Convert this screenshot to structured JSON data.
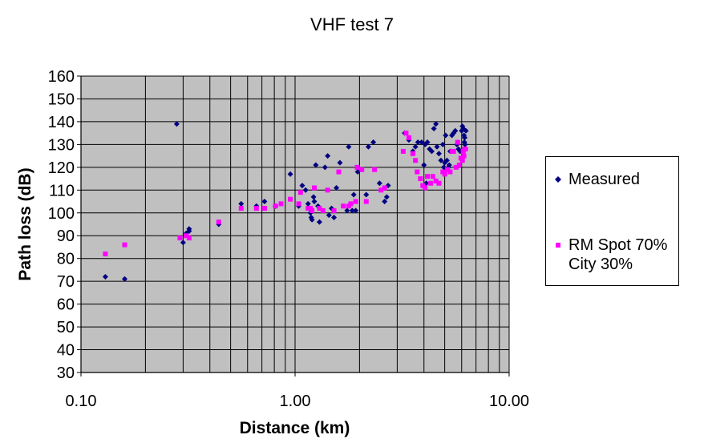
{
  "chart_data": {
    "type": "scatter",
    "title": "VHF test 7",
    "xlabel": "Distance (km)",
    "ylabel": "Path loss (dB)",
    "x_scale": "log",
    "xlim": [
      0.1,
      10
    ],
    "ylim": [
      30,
      160
    ],
    "x_ticks": [
      "0.10",
      "1.00",
      "10.00"
    ],
    "y_ticks": [
      "30",
      "40",
      "50",
      "60",
      "70",
      "80",
      "90",
      "100",
      "110",
      "120",
      "130",
      "140",
      "150",
      "160"
    ],
    "grid": true,
    "legend_position": "right",
    "colors": {
      "plot_bg": "#c0c0c0",
      "measured": "#000080",
      "rm_spot": "#ff00ff"
    },
    "series": [
      {
        "name": "Measured",
        "marker": "diamond",
        "points": [
          [
            0.13,
            72
          ],
          [
            0.16,
            71
          ],
          [
            0.28,
            139
          ],
          [
            0.3,
            87
          ],
          [
            0.31,
            91
          ],
          [
            0.32,
            93
          ],
          [
            0.32,
            92
          ],
          [
            0.44,
            95
          ],
          [
            0.56,
            104
          ],
          [
            0.66,
            103
          ],
          [
            0.72,
            105
          ],
          [
            0.81,
            103
          ],
          [
            0.95,
            117
          ],
          [
            1.04,
            103
          ],
          [
            1.08,
            112
          ],
          [
            1.12,
            110
          ],
          [
            1.15,
            104
          ],
          [
            1.18,
            100
          ],
          [
            1.19,
            98
          ],
          [
            1.2,
            97
          ],
          [
            1.22,
            107
          ],
          [
            1.23,
            105
          ],
          [
            1.25,
            121
          ],
          [
            1.28,
            103
          ],
          [
            1.3,
            96
          ],
          [
            1.38,
            120
          ],
          [
            1.42,
            125
          ],
          [
            1.44,
            99
          ],
          [
            1.48,
            102
          ],
          [
            1.52,
            98
          ],
          [
            1.56,
            111
          ],
          [
            1.62,
            122
          ],
          [
            1.75,
            101
          ],
          [
            1.78,
            129
          ],
          [
            1.85,
            101
          ],
          [
            1.88,
            108
          ],
          [
            1.92,
            101
          ],
          [
            1.96,
            118
          ],
          [
            2.15,
            108
          ],
          [
            2.2,
            129
          ],
          [
            2.32,
            131
          ],
          [
            2.48,
            113
          ],
          [
            2.62,
            105
          ],
          [
            2.68,
            107
          ],
          [
            2.72,
            112
          ],
          [
            3.25,
            135
          ],
          [
            3.4,
            132
          ],
          [
            3.55,
            127
          ],
          [
            3.65,
            129
          ],
          [
            3.75,
            131
          ],
          [
            3.9,
            131
          ],
          [
            4.0,
            121
          ],
          [
            4.05,
            130
          ],
          [
            4.1,
            113
          ],
          [
            4.15,
            131
          ],
          [
            4.25,
            128
          ],
          [
            4.35,
            127
          ],
          [
            4.45,
            137
          ],
          [
            4.55,
            139
          ],
          [
            4.6,
            129
          ],
          [
            4.7,
            126
          ],
          [
            4.8,
            123
          ],
          [
            4.9,
            130
          ],
          [
            5.0,
            122
          ],
          [
            5.05,
            134
          ],
          [
            5.12,
            123
          ],
          [
            5.2,
            120
          ],
          [
            5.3,
            127
          ],
          [
            5.4,
            134
          ],
          [
            5.5,
            135
          ],
          [
            5.6,
            136
          ],
          [
            5.7,
            130
          ],
          [
            5.8,
            128
          ],
          [
            5.9,
            127
          ],
          [
            6.0,
            136
          ],
          [
            6.05,
            138
          ],
          [
            6.1,
            137
          ],
          [
            6.15,
            134
          ],
          [
            6.18,
            131
          ],
          [
            6.2,
            133
          ],
          [
            6.22,
            130
          ],
          [
            6.25,
            128
          ],
          [
            6.28,
            136
          ],
          [
            5.25,
            121
          ],
          [
            4.95,
            120
          ]
        ]
      },
      {
        "name": "RM Spot 70%\nCity 30%",
        "marker": "square",
        "points": [
          [
            0.13,
            82
          ],
          [
            0.16,
            86
          ],
          [
            0.29,
            89
          ],
          [
            0.31,
            90
          ],
          [
            0.32,
            89
          ],
          [
            0.44,
            96
          ],
          [
            0.56,
            102
          ],
          [
            0.66,
            102
          ],
          [
            0.72,
            102
          ],
          [
            0.81,
            103
          ],
          [
            0.86,
            104
          ],
          [
            0.95,
            106
          ],
          [
            1.04,
            104
          ],
          [
            1.06,
            109
          ],
          [
            1.15,
            102
          ],
          [
            1.18,
            102
          ],
          [
            1.2,
            101
          ],
          [
            1.23,
            111
          ],
          [
            1.3,
            102
          ],
          [
            1.35,
            101
          ],
          [
            1.42,
            110
          ],
          [
            1.52,
            101
          ],
          [
            1.6,
            118
          ],
          [
            1.68,
            103
          ],
          [
            1.78,
            103
          ],
          [
            1.82,
            104
          ],
          [
            1.92,
            105
          ],
          [
            1.95,
            120
          ],
          [
            2.05,
            119
          ],
          [
            2.15,
            105
          ],
          [
            2.35,
            119
          ],
          [
            2.52,
            110
          ],
          [
            2.62,
            111
          ],
          [
            3.2,
            127
          ],
          [
            3.3,
            135
          ],
          [
            3.4,
            133
          ],
          [
            3.55,
            126
          ],
          [
            3.65,
            123
          ],
          [
            3.72,
            118
          ],
          [
            3.85,
            115
          ],
          [
            3.95,
            112
          ],
          [
            4.05,
            111
          ],
          [
            4.15,
            116
          ],
          [
            4.3,
            113
          ],
          [
            4.4,
            116
          ],
          [
            4.55,
            114
          ],
          [
            4.7,
            113
          ],
          [
            4.9,
            118
          ],
          [
            5.0,
            117
          ],
          [
            5.15,
            119
          ],
          [
            5.3,
            118
          ],
          [
            5.4,
            127
          ],
          [
            5.5,
            127
          ],
          [
            5.65,
            120
          ],
          [
            5.75,
            131
          ],
          [
            5.85,
            121
          ],
          [
            5.95,
            124
          ],
          [
            6.05,
            123
          ],
          [
            6.1,
            127
          ],
          [
            6.15,
            125
          ],
          [
            6.2,
            128
          ],
          [
            6.25,
            128
          ]
        ]
      }
    ]
  }
}
